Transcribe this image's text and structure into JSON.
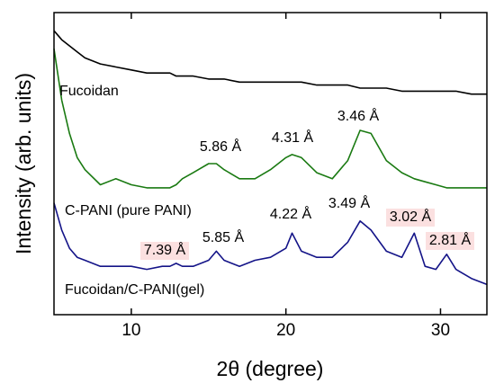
{
  "chart_data": {
    "type": "line",
    "xlabel": "2θ (degree)",
    "ylabel": "Intensity (arb. units)",
    "xlim": [
      5,
      33
    ],
    "ylim": [
      0,
      100
    ],
    "xticks": [
      10,
      20,
      30
    ],
    "x": [
      5,
      5.5,
      6,
      6.5,
      7,
      8,
      9,
      10,
      11,
      12,
      12.5,
      12.9,
      13.3,
      14,
      15,
      15.5,
      16,
      17,
      18,
      19,
      20,
      20.4,
      21,
      22,
      23,
      24,
      24.8,
      25.5,
      26.5,
      27.5,
      28.3,
      29,
      29.7,
      30.4,
      31,
      32,
      33
    ],
    "series": [
      {
        "name": "Fucoidan",
        "color": "#000000",
        "values": [
          94,
          91,
          89,
          87,
          85,
          83,
          82,
          81,
          80,
          80,
          80,
          79,
          79,
          79,
          78,
          78,
          78,
          77,
          77,
          77,
          77,
          77,
          77,
          76,
          76,
          76,
          75,
          75,
          75,
          74,
          74,
          74,
          74,
          74,
          74,
          73,
          73
        ]
      },
      {
        "name": "C-PANI (pure PANI)",
        "color": "#1a7a12",
        "values": [
          88,
          71,
          60,
          52,
          48,
          43,
          45,
          43,
          42,
          42,
          42,
          43,
          45,
          47,
          50,
          50,
          48,
          45,
          45,
          48,
          52,
          53,
          52,
          47,
          45,
          51,
          61,
          60,
          51,
          47,
          45,
          44,
          43,
          42,
          42,
          42,
          42
        ]
      },
      {
        "name": "Fucoidan/C-PANI(gel)",
        "color": "#141488",
        "values": [
          37,
          28,
          22,
          19,
          18,
          16,
          16,
          16,
          15,
          16,
          16,
          17,
          16,
          16,
          18,
          21,
          18,
          16,
          18,
          19,
          22,
          27,
          21,
          19,
          19,
          24,
          31,
          28,
          21,
          19,
          27,
          16,
          15,
          20,
          15,
          12,
          10
        ]
      }
    ],
    "annotations": [
      {
        "text": "5.86 Å",
        "color": "#000000"
      },
      {
        "text": "4.31 Å",
        "color": "#000000"
      },
      {
        "text": "3.46 Å",
        "color": "#000000"
      },
      {
        "text": "7.39 Å",
        "color": "#b03030"
      },
      {
        "text": "5.85 Å",
        "color": "#000000"
      },
      {
        "text": "4.22 Å",
        "color": "#000000"
      },
      {
        "text": "3.49 Å",
        "color": "#000000"
      },
      {
        "text": "3.02 Å",
        "color": "#b03030"
      },
      {
        "text": "2.81 Å",
        "color": "#b03030"
      }
    ]
  }
}
